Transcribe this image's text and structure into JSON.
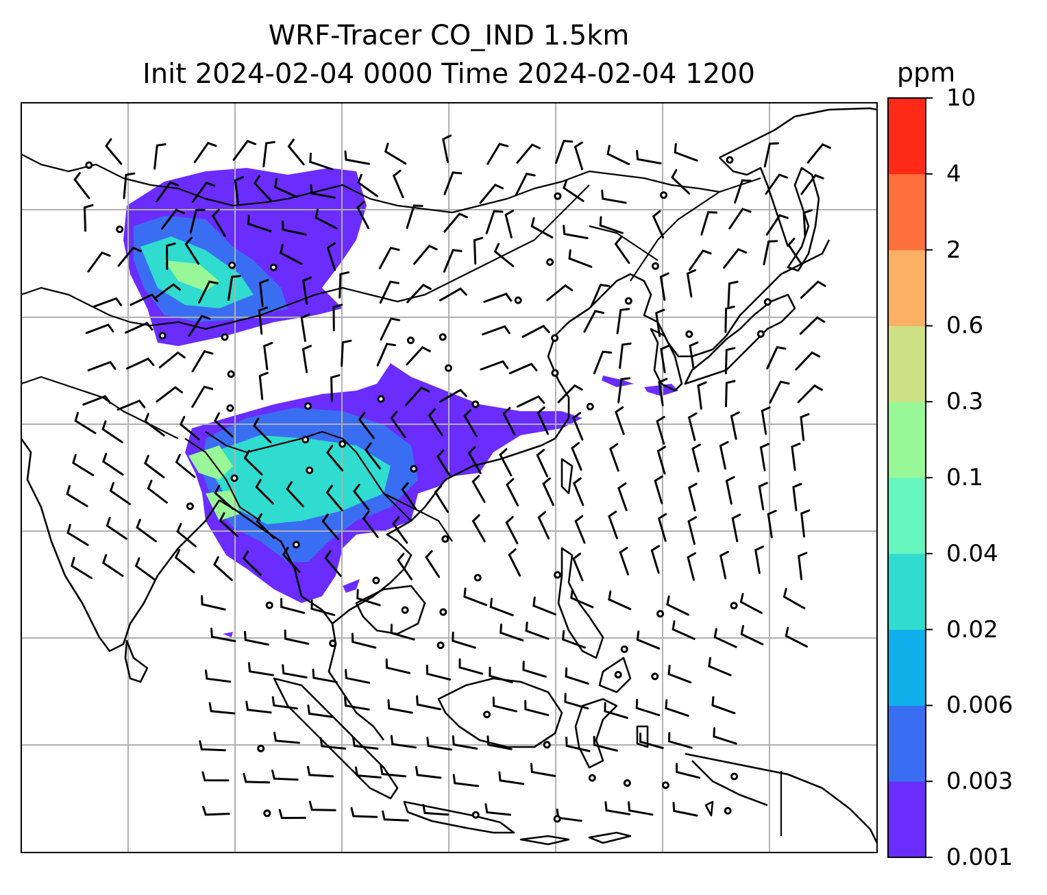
{
  "title": {
    "line1": "WRF-Tracer CO_IND 1.5km",
    "line2": "Init 2024-02-04 0000 Time 2024-02-04 1200"
  },
  "colorbar": {
    "units": "ppm",
    "ticks": [
      "0.001",
      "0.003",
      "0.006",
      "0.02",
      "0.04",
      "0.1",
      "0.3",
      "0.6",
      "2",
      "4",
      "10"
    ],
    "colors": [
      "#6a2cff",
      "#3a6ef2",
      "#0db0ea",
      "#2fdccf",
      "#66f6c0",
      "#98f796",
      "#cde184",
      "#fbb063",
      "#fd6f3b",
      "#fe2a17"
    ]
  },
  "map": {
    "layers": [
      "coastlines",
      "country-borders",
      "gridlines",
      "wind-barbs",
      "tracer-concentration"
    ],
    "colors": {
      "land_line": "#000000",
      "grid": "#b0b0b0",
      "plume_light": "#6a2cff",
      "plume_mid": "#3a6ef2",
      "plume_core": "#2fdccf",
      "plume_peak": "#98f796"
    }
  }
}
